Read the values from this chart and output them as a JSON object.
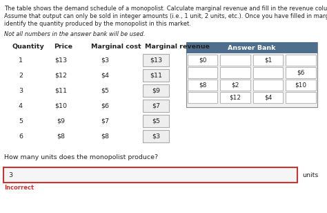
{
  "title_lines": [
    "The table shows the demand schedule of a monopolist. Calculate marginal revenue and fill in the revenue column in the table.",
    "Assume that output can only be sold in integer amounts (i.e., 1 unit, 2 units, etc.). Once you have filled in marginal revenue,",
    "identify the quantity produced by the monopolist in this market."
  ],
  "italic_text": "Not all numbers in the answer bank will be used.",
  "col_headers": [
    "Quantity",
    "Price",
    "Marginal cost",
    "Marginal revenue"
  ],
  "table_data": [
    [
      "1",
      "$13",
      "$3",
      "$13"
    ],
    [
      "2",
      "$12",
      "$4",
      "$11"
    ],
    [
      "3",
      "$11",
      "$5",
      "$9"
    ],
    [
      "4",
      "$10",
      "$6",
      "$7"
    ],
    [
      "5",
      "$9",
      "$7",
      "$5"
    ],
    [
      "6",
      "$8",
      "$8",
      "$3"
    ]
  ],
  "answer_bank_header": "Answer Bank",
  "answer_bank_header_bg": "#4e6e8e",
  "answer_bank_rows": [
    [
      "$0",
      "",
      "$1",
      ""
    ],
    [
      "",
      "",
      "",
      "$6"
    ],
    [
      "$8",
      "$2",
      "",
      "$10"
    ],
    [
      "",
      "$12",
      "$4",
      ""
    ]
  ],
  "question_text": "How many units does the monopolist produce?",
  "answer_value": "3",
  "answer_unit": "units",
  "answer_box_border": "#cc3333",
  "answer_box_bg": "#f5f5f5",
  "incorrect_text": "Incorrect",
  "incorrect_color": "#cc3333",
  "bg_color": "#ffffff",
  "text_color": "#222222",
  "cell_border_color": "#aaaaaa",
  "mr_box_bg": "#eeeeee",
  "ab_bg": "#f0f0f0"
}
